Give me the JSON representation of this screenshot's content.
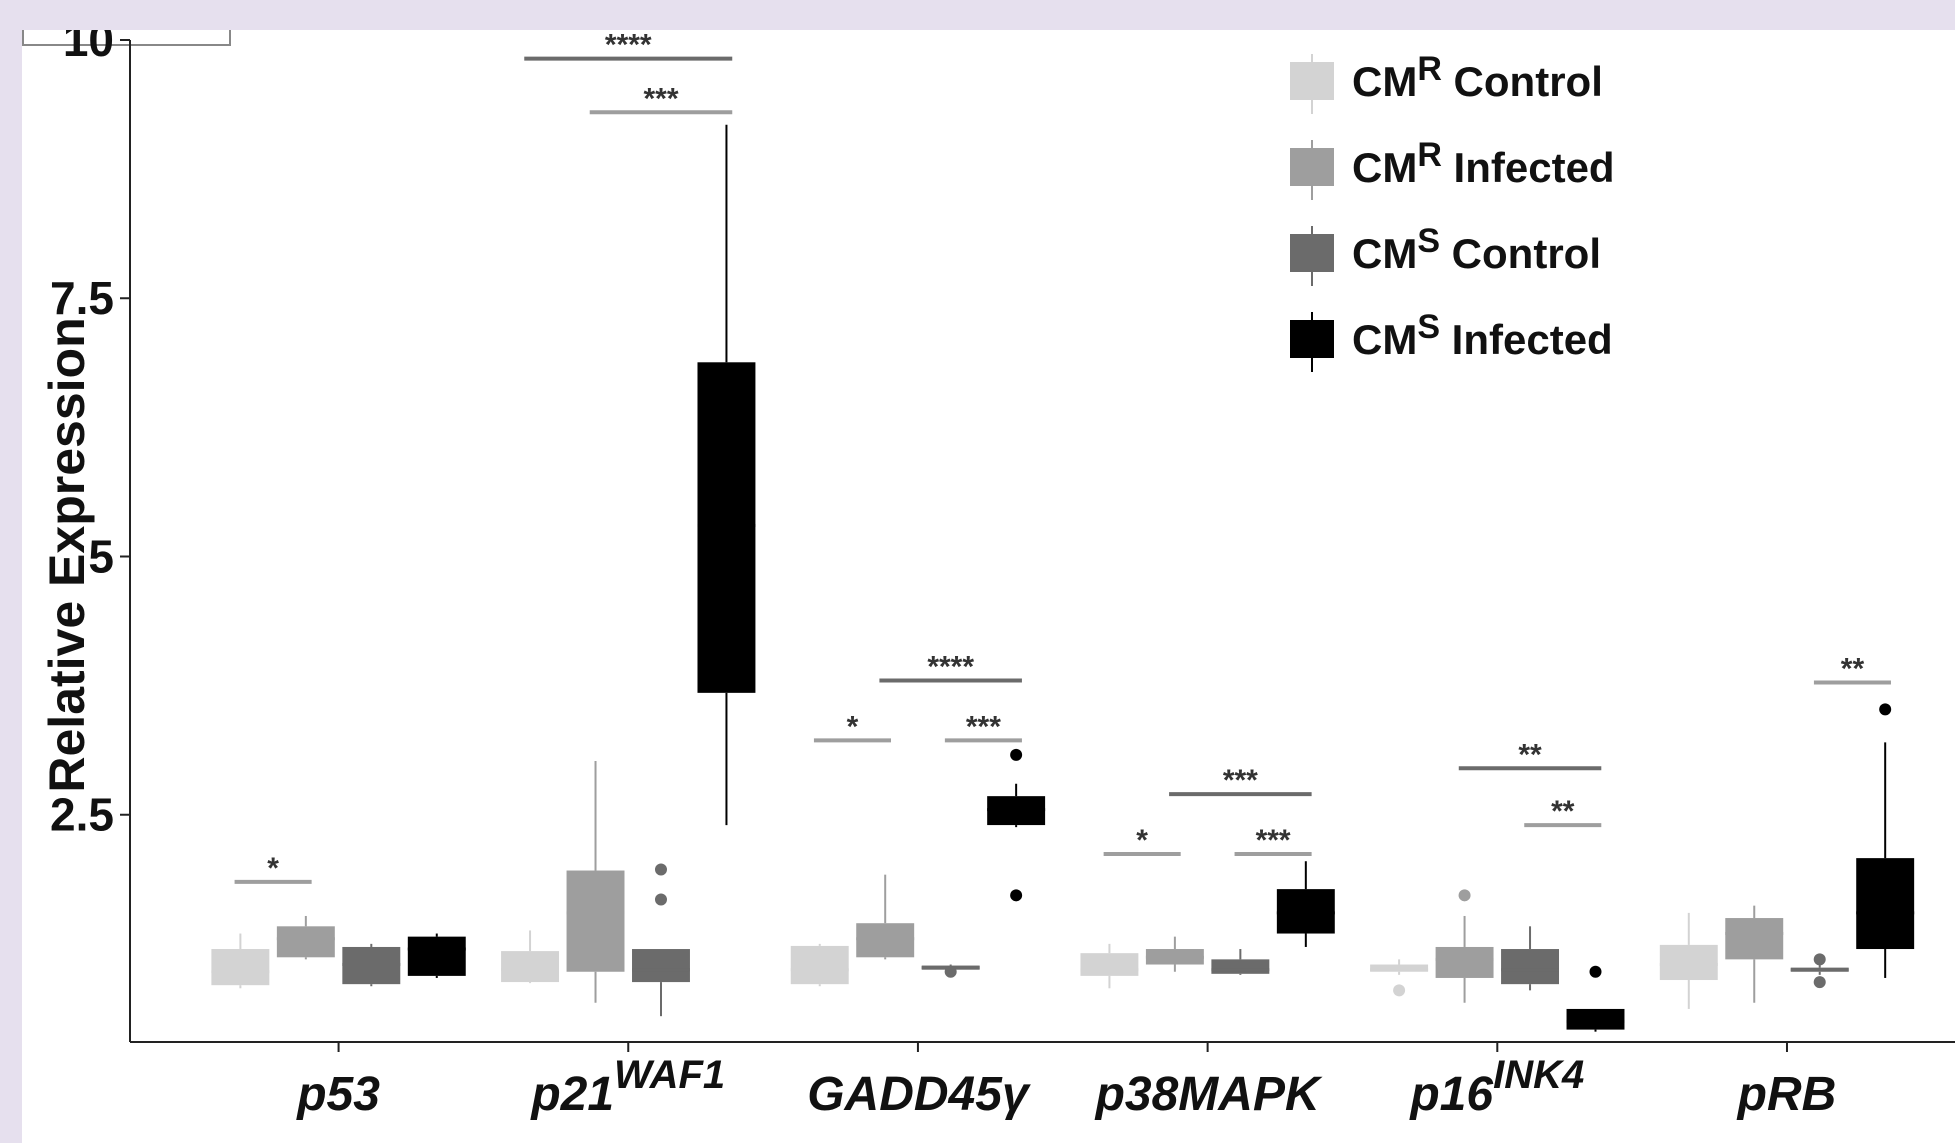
{
  "chart_data": {
    "type": "box",
    "ylabel": "Relative Expression",
    "ylim": [
      0.3,
      10
    ],
    "yticks": [
      {
        "value": 2.5,
        "label": "2.5"
      },
      {
        "value": 5,
        "label": "5"
      },
      {
        "value": 7.5,
        "label": "7.5"
      },
      {
        "value": 10,
        "label": "10"
      }
    ],
    "categories": [
      {
        "base": "p53",
        "sup": ""
      },
      {
        "base": "p21",
        "sup": "WAF1"
      },
      {
        "base": "GADD45γ",
        "sup": ""
      },
      {
        "base": "p38MAPK",
        "sup": ""
      },
      {
        "base": "p16",
        "sup": "INK4"
      },
      {
        "base": "pRB",
        "sup": ""
      }
    ],
    "series": [
      {
        "prefix": "CM",
        "sup": "R",
        "suffix": " Control",
        "color": "#d3d3d3"
      },
      {
        "prefix": "CM",
        "sup": "R",
        "suffix": " Infected",
        "color": "#9e9e9e"
      },
      {
        "prefix": "CM",
        "sup": "S",
        "suffix": " Control",
        "color": "#6b6b6b"
      },
      {
        "prefix": "CM",
        "sup": "S",
        "suffix": " Infected",
        "color": "#000000"
      }
    ],
    "legend_position": "top-right",
    "grid": false,
    "boxes": [
      [
        {
          "min": 0.82,
          "q1": 0.85,
          "median": 0.98,
          "q3": 1.2,
          "max": 1.35,
          "outliers": []
        },
        {
          "min": 1.1,
          "q1": 1.12,
          "median": 1.3,
          "q3": 1.42,
          "max": 1.52,
          "outliers": []
        },
        {
          "min": 0.84,
          "q1": 0.86,
          "median": 1.05,
          "q3": 1.22,
          "max": 1.25,
          "outliers": []
        },
        {
          "min": 0.92,
          "q1": 0.94,
          "median": 1.2,
          "q3": 1.32,
          "max": 1.35,
          "outliers": []
        }
      ],
      [
        {
          "min": 0.87,
          "q1": 0.88,
          "median": 1.0,
          "q3": 1.18,
          "max": 1.38,
          "outliers": []
        },
        {
          "min": 0.68,
          "q1": 0.98,
          "median": 1.55,
          "q3": 1.96,
          "max": 3.02,
          "outliers": []
        },
        {
          "min": 0.55,
          "q1": 0.88,
          "median": 1.0,
          "q3": 1.2,
          "max": 1.2,
          "outliers": [
            1.68,
            1.97
          ]
        },
        {
          "min": 2.4,
          "q1": 3.68,
          "median": 5.3,
          "q3": 6.88,
          "max": 9.18,
          "outliers": []
        }
      ],
      [
        {
          "min": 0.84,
          "q1": 0.86,
          "median": 1.0,
          "q3": 1.23,
          "max": 1.25,
          "outliers": []
        },
        {
          "min": 1.1,
          "q1": 1.12,
          "median": 1.3,
          "q3": 1.45,
          "max": 1.92,
          "outliers": []
        },
        {
          "min": 0.98,
          "q1": 1.0,
          "median": 1.02,
          "q3": 1.04,
          "max": 1.05,
          "outliers": [
            0.98
          ]
        },
        {
          "min": 2.38,
          "q1": 2.4,
          "median": 2.55,
          "q3": 2.68,
          "max": 2.8,
          "outliers": [
            1.72,
            3.08
          ]
        }
      ],
      [
        {
          "min": 0.82,
          "q1": 0.94,
          "median": 1.0,
          "q3": 1.16,
          "max": 1.25,
          "outliers": []
        },
        {
          "min": 0.98,
          "q1": 1.05,
          "median": 1.12,
          "q3": 1.2,
          "max": 1.32,
          "outliers": []
        },
        {
          "min": 0.95,
          "q1": 0.96,
          "median": 1.0,
          "q3": 1.1,
          "max": 1.2,
          "outliers": []
        },
        {
          "min": 1.22,
          "q1": 1.35,
          "median": 1.55,
          "q3": 1.78,
          "max": 2.05,
          "outliers": []
        }
      ],
      [
        {
          "min": 0.95,
          "q1": 0.98,
          "median": 1.0,
          "q3": 1.05,
          "max": 1.1,
          "outliers": [
            0.8
          ]
        },
        {
          "min": 0.68,
          "q1": 0.92,
          "median": 1.1,
          "q3": 1.22,
          "max": 1.52,
          "outliers": [
            1.72
          ]
        },
        {
          "min": 0.8,
          "q1": 0.86,
          "median": 1.0,
          "q3": 1.2,
          "max": 1.42,
          "outliers": []
        },
        {
          "min": 0.4,
          "q1": 0.42,
          "median": 0.5,
          "q3": 0.62,
          "max": 0.62,
          "outliers": [
            0.98
          ]
        }
      ],
      [
        {
          "min": 0.62,
          "q1": 0.9,
          "median": 1.05,
          "q3": 1.24,
          "max": 1.55,
          "outliers": []
        },
        {
          "min": 0.68,
          "q1": 1.1,
          "median": 1.35,
          "q3": 1.5,
          "max": 1.62,
          "outliers": []
        },
        {
          "min": 0.95,
          "q1": 0.98,
          "median": 1.0,
          "q3": 1.02,
          "max": 1.05,
          "outliers": [
            0.88,
            1.1
          ]
        },
        {
          "min": 0.92,
          "q1": 1.2,
          "median": 1.55,
          "q3": 2.08,
          "max": 3.2,
          "outliers": [
            3.52
          ]
        }
      ]
    ],
    "significance": [
      {
        "category": 0,
        "from": 0,
        "to": 1,
        "y": 1.85,
        "label": "*",
        "color": "#9e9e9e"
      },
      {
        "category": 1,
        "from": 0,
        "to": 3,
        "y": 9.82,
        "label": "****",
        "color": "#6b6b6b"
      },
      {
        "category": 1,
        "from": 1,
        "to": 3,
        "y": 9.3,
        "label": "***",
        "color": "#9e9e9e"
      },
      {
        "category": 2,
        "from": 0,
        "to": 1,
        "y": 3.22,
        "label": "*",
        "color": "#9e9e9e"
      },
      {
        "category": 2,
        "from": 1,
        "to": 3,
        "y": 3.8,
        "label": "****",
        "color": "#6b6b6b"
      },
      {
        "category": 2,
        "from": 2,
        "to": 3,
        "y": 3.22,
        "label": "***",
        "color": "#9e9e9e"
      },
      {
        "category": 3,
        "from": 0,
        "to": 1,
        "y": 2.12,
        "label": "*",
        "color": "#9e9e9e"
      },
      {
        "category": 3,
        "from": 1,
        "to": 3,
        "y": 2.7,
        "label": "***",
        "color": "#6b6b6b"
      },
      {
        "category": 3,
        "from": 2,
        "to": 3,
        "y": 2.12,
        "label": "***",
        "color": "#9e9e9e"
      },
      {
        "category": 4,
        "from": 1,
        "to": 3,
        "y": 2.95,
        "label": "**",
        "color": "#6b6b6b"
      },
      {
        "category": 4,
        "from": 2,
        "to": 3,
        "y": 2.4,
        "label": "**",
        "color": "#9e9e9e"
      },
      {
        "category": 5,
        "from": 2,
        "to": 3,
        "y": 3.78,
        "label": "**",
        "color": "#9e9e9e"
      }
    ]
  }
}
